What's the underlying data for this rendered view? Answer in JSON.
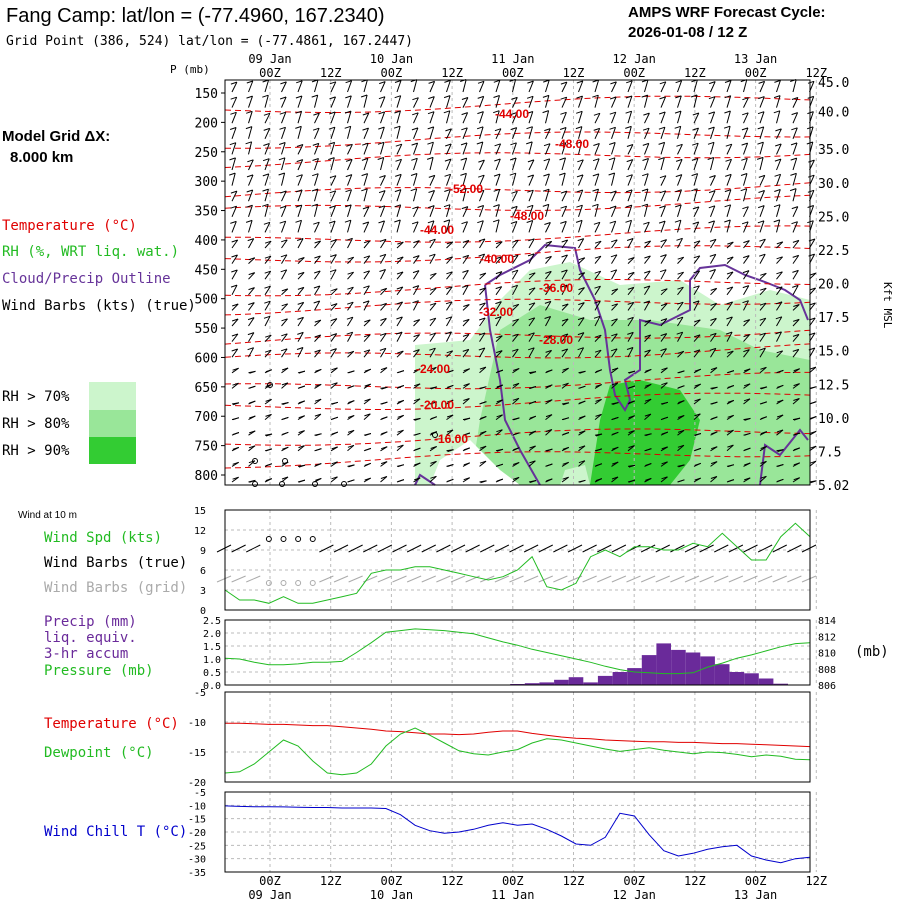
{
  "header": {
    "station_title": "Fang Camp:  lat/lon = (-77.4960, 167.2340)",
    "grid_point": "Grid Point (386, 524) lat/lon = (-77.4861, 167.2447)",
    "cycle_label": "AMPS WRF Forecast Cycle:",
    "cycle_value": "2026-01-08 / 12  Z"
  },
  "left_legend": {
    "model_grid_title": "Model Grid ΔX:",
    "model_grid_value": "8.000 km",
    "temperature": "Temperature (°C)",
    "rh": "RH (%, WRT liq. wat.)",
    "cloud": "Cloud/Precip Outline",
    "wind_barbs": "Wind Barbs (kts) (true)",
    "rh70": "RH > 70%",
    "rh80": "RH > 80%",
    "rh90": "RH > 90%"
  },
  "time_axis": {
    "hours": [
      "00Z",
      "12Z",
      "00Z",
      "12Z",
      "00Z",
      "12Z",
      "00Z",
      "12Z",
      "00Z",
      "12Z"
    ],
    "dates": [
      "09 Jan",
      "10 Jan",
      "11 Jan",
      "12 Jan",
      "13 Jan"
    ]
  },
  "colors": {
    "temp": "#e00000",
    "rh70": "#ccf5cc",
    "rh80": "#99e699",
    "rh90": "#33cc33",
    "cloud": "#663399",
    "green_line": "#22bb22",
    "precip": "#6a2a9a",
    "windchill": "#0000cc",
    "grid_barb": "#aaaaaa"
  },
  "chart_data": [
    {
      "type": "heatmap",
      "title": "Vertical cross-section",
      "ylabel": "P (mb)",
      "ylabel_right": "Kft MSL",
      "y_ticks": [
        150,
        200,
        250,
        300,
        350,
        400,
        450,
        500,
        550,
        600,
        650,
        700,
        750,
        800
      ],
      "y_right_ticks": [
        "45.0",
        "40.0",
        "35.0",
        "30.0",
        "25.0",
        "22.5",
        "20.0",
        "17.5",
        "15.0",
        "12.5",
        "10.0",
        "7.5",
        "5.02"
      ],
      "temperature_labels": [
        "-44.00",
        "-48.00",
        "-52.00",
        "-48.00",
        "-44.00",
        "-40.00",
        "-36.00",
        "-32.00",
        "-28.00",
        "-24.00",
        "-20.00",
        "-16.00"
      ]
    },
    {
      "type": "line",
      "title": "Wind at 10 m",
      "series": [
        {
          "name": "Wind Spd (kts)",
          "values": [
            3,
            1.5,
            1.5,
            1,
            2,
            1,
            1,
            1.5,
            2,
            2.5,
            5.5,
            6,
            6,
            6.5,
            6.5,
            6,
            5.5,
            5,
            4.5,
            5,
            6,
            8,
            3.5,
            3,
            4,
            8,
            9,
            8,
            9.5,
            9.5,
            9,
            9,
            10,
            9.5,
            11.5,
            9.5,
            7.5,
            7.5,
            11,
            13,
            11
          ]
        }
      ],
      "legend": [
        "Wind Spd (kts)",
        "Wind Barbs (true)",
        "Wind Barbs (grid)"
      ],
      "y_ticks": [
        "15",
        "12",
        "9",
        "6",
        "3",
        "0"
      ],
      "ylim": [
        0,
        15
      ]
    },
    {
      "type": "bar",
      "title": "Precip / Pressure",
      "legend": [
        "Precip (mm)",
        "liq. equiv.",
        "3-hr accum",
        "Pressure (mb)"
      ],
      "precip_values": [
        0,
        0,
        0,
        0,
        0,
        0,
        0,
        0,
        0,
        0,
        0,
        0,
        0,
        0,
        0,
        0,
        0,
        0,
        0,
        0.02,
        0.04,
        0.07,
        0.1,
        0.2,
        0.3,
        0.1,
        0.35,
        0.5,
        0.65,
        1.15,
        1.6,
        1.35,
        1.25,
        1.1,
        0.8,
        0.5,
        0.45,
        0.25,
        0.05,
        0,
        0
      ],
      "pressure_values": [
        809.3,
        809.2,
        808.8,
        808.5,
        808.5,
        808.6,
        808.8,
        808.8,
        808.9,
        810.0,
        811.2,
        812.5,
        812.7,
        812.9,
        812.8,
        812.7,
        812.5,
        812.3,
        811.8,
        811.3,
        810.9,
        810.4,
        810.0,
        809.6,
        809.2,
        808.8,
        808.3,
        807.9,
        807.6,
        807.5,
        807.4,
        807.4,
        807.5,
        808.2,
        808.7,
        809.3,
        809.7,
        810.2,
        810.7,
        811.1,
        811.2
      ],
      "y_ticks": [
        "2.5",
        "2.0",
        "1.5",
        "1.0",
        "0.5",
        "0.0"
      ],
      "y_right_ticks": [
        "814",
        "812",
        "810",
        "808",
        "806"
      ],
      "right_unit": "(mb)",
      "ylim": [
        0,
        2.5
      ],
      "y2lim": [
        806,
        814
      ]
    },
    {
      "type": "line",
      "title": "Temperature / Dewpoint",
      "series": [
        {
          "name": "Temperature (°C)",
          "values": [
            -10.2,
            -10.2,
            -10.3,
            -10.4,
            -10.4,
            -10.5,
            -10.6,
            -10.6,
            -10.8,
            -11.0,
            -11.2,
            -11.5,
            -11.6,
            -11.8,
            -12.0,
            -12.0,
            -12.1,
            -12.0,
            -11.7,
            -11.5,
            -11.5,
            -11.9,
            -12.2,
            -12.5,
            -12.7,
            -12.8,
            -13.0,
            -13.1,
            -13.2,
            -13.3,
            -13.3,
            -13.4,
            -13.4,
            -13.5,
            -13.6,
            -13.6,
            -13.7,
            -13.8,
            -13.9,
            -14.0,
            -14.1
          ]
        },
        {
          "name": "Dewpoint (°C)",
          "values": [
            -18.5,
            -18.3,
            -17.0,
            -15.0,
            -13.0,
            -14.0,
            -16.5,
            -18.5,
            -18.8,
            -18.5,
            -17.0,
            -14.0,
            -12.0,
            -11.0,
            -12.2,
            -13.5,
            -14.8,
            -15.3,
            -15.5,
            -15.0,
            -14.6,
            -13.5,
            -12.8,
            -13.0,
            -13.5,
            -14.0,
            -14.5,
            -14.9,
            -14.6,
            -14.3,
            -14.7,
            -15.0,
            -15.3,
            -15.0,
            -15.1,
            -15.4,
            -15.8,
            -15.5,
            -15.7,
            -16.2,
            -16.3
          ]
        }
      ],
      "y_ticks": [
        "-5",
        "-10",
        "-15",
        "-20"
      ],
      "ylim": [
        -20,
        -5
      ]
    },
    {
      "type": "line",
      "title": "Wind Chill",
      "series": [
        {
          "name": "Wind Chill T (°C)",
          "values": [
            -10.2,
            -10.4,
            -10.5,
            -10.5,
            -10.6,
            -10.7,
            -10.8,
            -10.8,
            -11.0,
            -11.0,
            -11.0,
            -11.2,
            -13.5,
            -17.5,
            -19.5,
            -20.5,
            -20.0,
            -19.0,
            -17.5,
            -16.5,
            -17.5,
            -17.0,
            -19.0,
            -21.5,
            -24.5,
            -25.0,
            -22.0,
            -13.0,
            -14.0,
            -21.0,
            -27.0,
            -29.0,
            -28.0,
            -26.5,
            -25.5,
            -25.0,
            -29.0,
            -30.5,
            -31.5,
            -30.0,
            -29.5
          ]
        }
      ],
      "y_ticks": [
        "-5",
        "-10",
        "-15",
        "-20",
        "-25",
        "-30",
        "-35"
      ],
      "ylim": [
        -35,
        -5
      ]
    }
  ],
  "panel_text": {
    "p_label": "P (mb)",
    "wind10_title": "Wind at 10 m",
    "wind_spd": "Wind Spd (kts)",
    "barbs_true": "Wind Barbs (true)",
    "barbs_grid": "Wind Barbs (grid)",
    "precip1": "Precip (mm)",
    "precip2": "liq. equiv.",
    "precip3": "3-hr accum",
    "pressure": "Pressure (mb)",
    "mb_unit": "(mb)",
    "temp": "Temperature (°C)",
    "dewp": "Dewpoint (°C)",
    "windchill": "Wind Chill T (°C)",
    "kft": "Kft MSL"
  }
}
